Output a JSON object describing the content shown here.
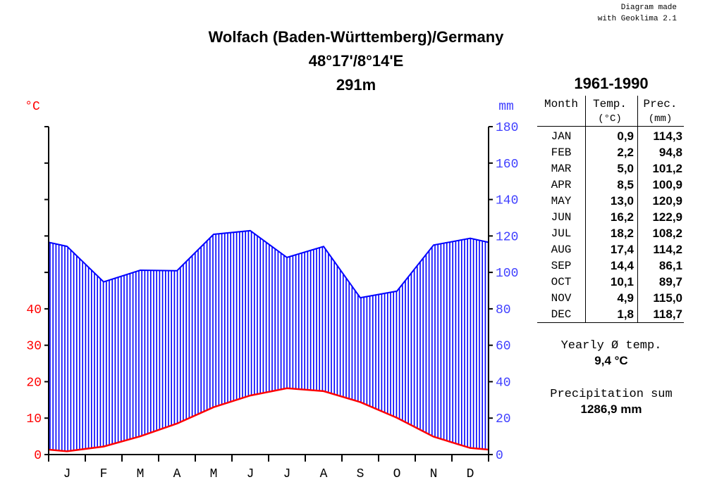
{
  "credit": {
    "line1": "Diagram made",
    "line2": "with Geoklima 2.1"
  },
  "header": {
    "station": "Wolfach (Baden-Württemberg)/Germany",
    "coords": "48°17'/8°14'E",
    "elevation": "291m",
    "period": "1961-1990"
  },
  "table": {
    "col_month": "Month",
    "col_temp": "Temp.",
    "col_prec": "Prec.",
    "unit_temp": "(°C)",
    "unit_prec": "(mm)",
    "rows": [
      {
        "month": "JAN",
        "temp": "0,9",
        "prec": "114,3"
      },
      {
        "month": "FEB",
        "temp": "2,2",
        "prec": "94,8"
      },
      {
        "month": "MAR",
        "temp": "5,0",
        "prec": "101,2"
      },
      {
        "month": "APR",
        "temp": "8,5",
        "prec": "100,9"
      },
      {
        "month": "MAY",
        "temp": "13,0",
        "prec": "120,9"
      },
      {
        "month": "JUN",
        "temp": "16,2",
        "prec": "122,9"
      },
      {
        "month": "JUL",
        "temp": "18,2",
        "prec": "108,2"
      },
      {
        "month": "AUG",
        "temp": "17,4",
        "prec": "114,2"
      },
      {
        "month": "SEP",
        "temp": "14,4",
        "prec": "86,1"
      },
      {
        "month": "OCT",
        "temp": "10,1",
        "prec": "89,7"
      },
      {
        "month": "NOV",
        "temp": "4,9",
        "prec": "115,0"
      },
      {
        "month": "DEC",
        "temp": "1,8",
        "prec": "118,7"
      }
    ]
  },
  "summary": {
    "yearly_label": "Yearly Ø temp.",
    "yearly_value": "9,4 °C",
    "precip_label": "Precipitation sum",
    "precip_value": "1286,9 mm"
  },
  "chart_data": {
    "type": "line",
    "categories": [
      "J",
      "F",
      "M",
      "A",
      "M",
      "J",
      "J",
      "A",
      "S",
      "O",
      "N",
      "D"
    ],
    "series": [
      {
        "name": "Temp.",
        "unit": "°C",
        "axis": "left",
        "color": "#ff0000",
        "values": [
          0.9,
          2.2,
          5.0,
          8.5,
          13.0,
          16.2,
          18.2,
          17.4,
          14.4,
          10.1,
          4.9,
          1.8
        ]
      },
      {
        "name": "Prec.",
        "unit": "mm",
        "axis": "right",
        "color": "#0000ff",
        "fill": "hatched",
        "values": [
          114.3,
          94.8,
          101.2,
          100.9,
          120.9,
          122.9,
          108.2,
          114.2,
          86.1,
          89.7,
          115.0,
          118.7
        ]
      }
    ],
    "y_left": {
      "label": "°C",
      "ticks": [
        0,
        10,
        20,
        30,
        40
      ],
      "range": [
        0,
        90
      ],
      "color": "#ff0000"
    },
    "y_right": {
      "label": "mm",
      "ticks": [
        0,
        20,
        40,
        60,
        80,
        100,
        120,
        140,
        160,
        180
      ],
      "range": [
        0,
        180
      ],
      "color": "#4040ff"
    },
    "grid": false
  }
}
